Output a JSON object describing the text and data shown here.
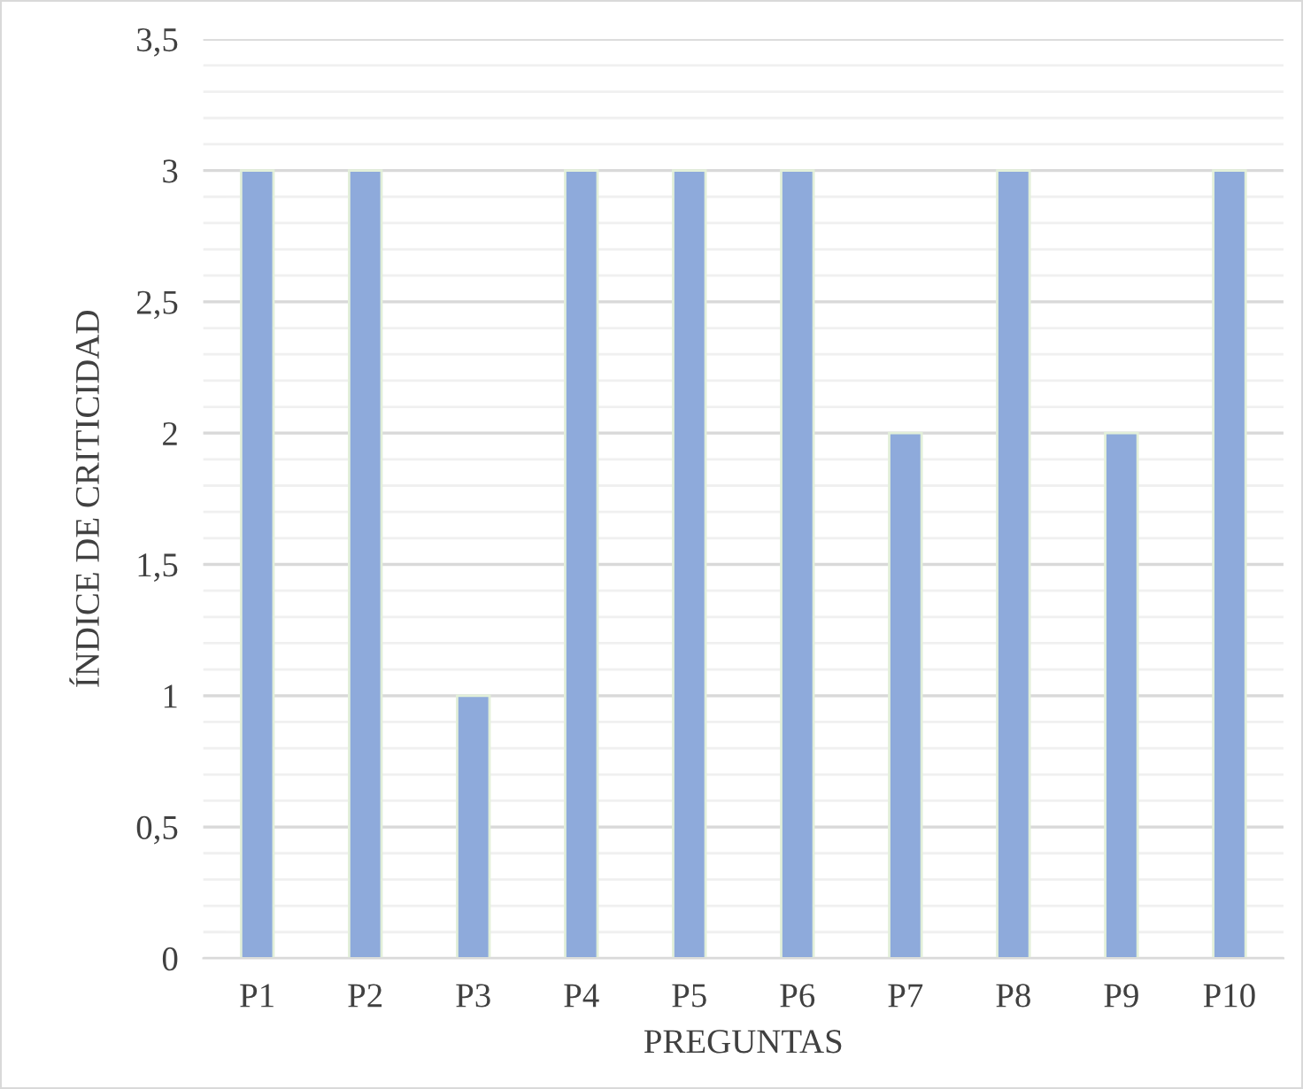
{
  "chart_data": {
    "type": "bar",
    "xlabel": "PREGUNTAS",
    "ylabel": "ÍNDICE DE CRITICIDAD",
    "categories": [
      "P1",
      "P2",
      "P3",
      "P4",
      "P5",
      "P6",
      "P7",
      "P8",
      "P9",
      "P10"
    ],
    "values": [
      3,
      3,
      1,
      3,
      3,
      3,
      2,
      3,
      2,
      3
    ],
    "color": "#8eaadb",
    "ylim": [
      0,
      3.5
    ],
    "yticks": [
      0,
      {
        "value": 0.5,
        "label": "0,5"
      },
      1,
      {
        "value": 1.5,
        "label": "1,5"
      },
      2,
      {
        "value": 2.5,
        "label": "2,5"
      },
      3,
      {
        "value": 3.5,
        "label": "3,5"
      }
    ],
    "grid": "y"
  }
}
